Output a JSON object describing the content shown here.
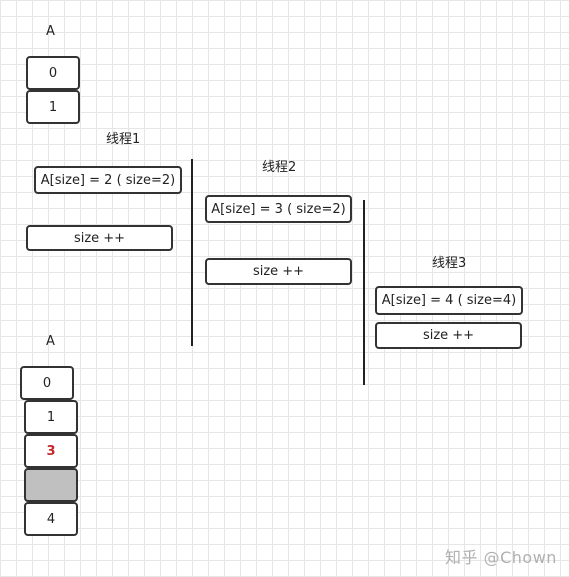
{
  "array_before": {
    "label": "A",
    "cells": [
      "0",
      "1"
    ]
  },
  "threads": [
    {
      "name": "线程1",
      "assign": "A[size] = 2 ( size=2)",
      "increment": "size ++"
    },
    {
      "name": "线程2",
      "assign": "A[size] = 3 ( size=2)",
      "increment": "size ++"
    },
    {
      "name": "线程3",
      "assign": "A[size] = 4 ( size=4)",
      "increment": "size ++"
    }
  ],
  "array_after": {
    "label": "A",
    "cells": [
      "0",
      "1",
      "3",
      "",
      "4"
    ],
    "highlight_color": "#c62828",
    "empty_fill": "#c0c0c0"
  },
  "watermark": "知乎 @Chown"
}
